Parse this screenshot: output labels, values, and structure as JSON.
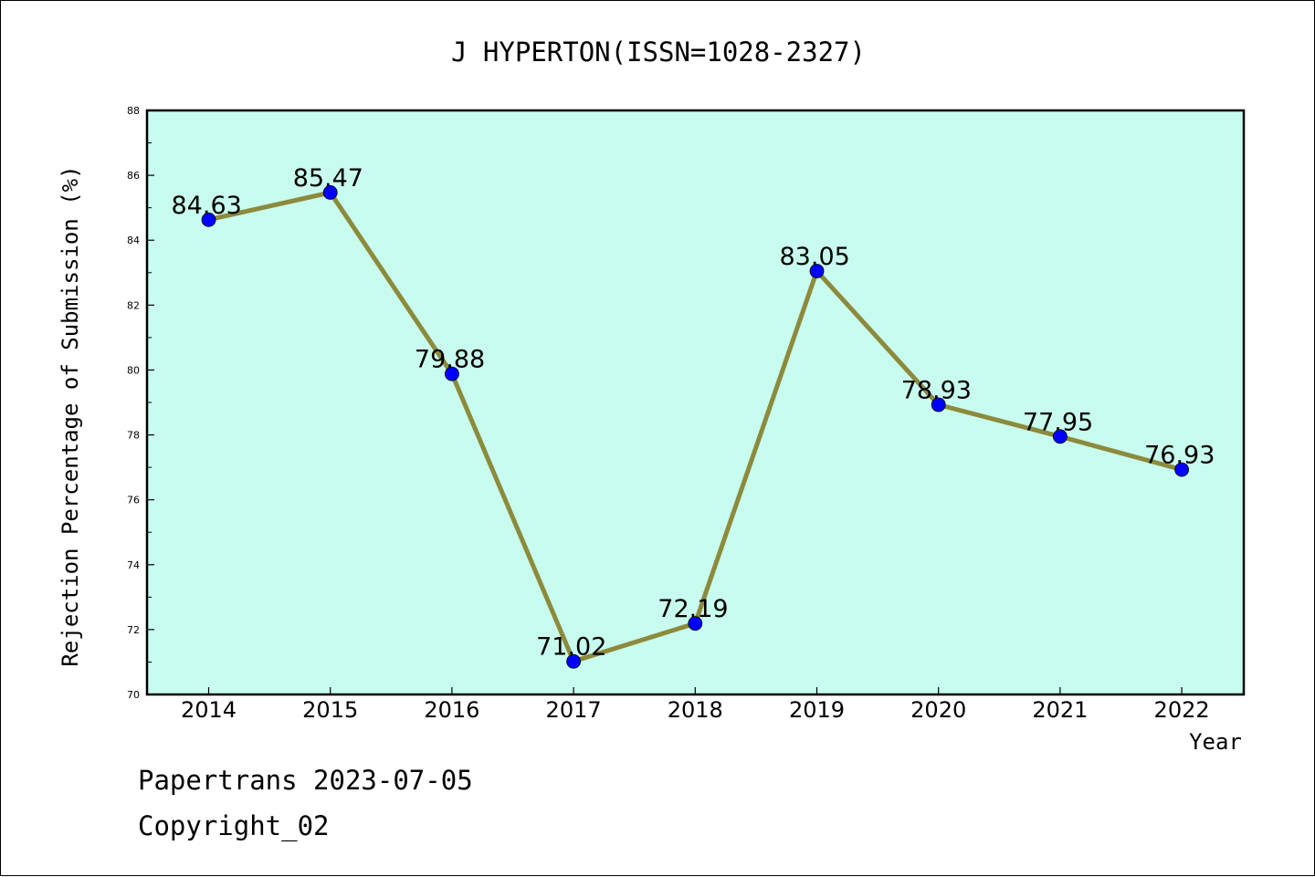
{
  "chart_data": {
    "type": "line",
    "title": "J HYPERTON(ISSN=1028-2327)",
    "xlabel": "Year",
    "ylabel": "Rejection Percentage of Submission (%)",
    "categories": [
      "2014",
      "2015",
      "2016",
      "2017",
      "2018",
      "2019",
      "2020",
      "2021",
      "2022"
    ],
    "values": [
      84.63,
      85.47,
      79.88,
      71.02,
      72.19,
      83.05,
      78.93,
      77.95,
      76.93
    ],
    "data_labels": [
      "84.63",
      "85.47",
      "79.88",
      "71.02",
      "72.19",
      "83.05",
      "78.93",
      "77.95",
      "76.93"
    ],
    "ylim": [
      70,
      88
    ],
    "yticks": [
      "70",
      "72",
      "74",
      "76",
      "78",
      "80",
      "82",
      "84",
      "86",
      "88"
    ],
    "grid": false,
    "legend": "none",
    "colors": {
      "plot_background": "#c8fcee",
      "line": "#8c8a3c",
      "marker": "#0000ff"
    }
  },
  "footer": {
    "line1": "Papertrans 2023-07-05",
    "line2": "Copyright_02"
  }
}
